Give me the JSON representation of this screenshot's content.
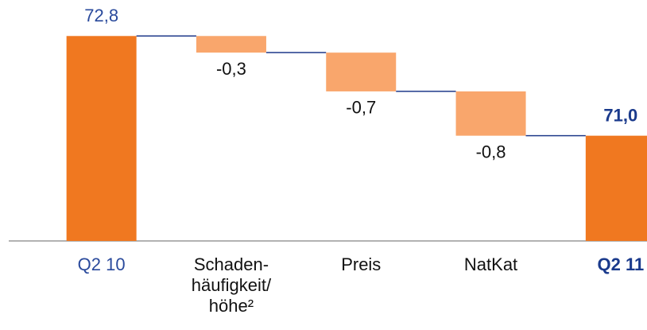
{
  "chart_data": {
    "type": "waterfall",
    "categories": [
      "Q2 10",
      "Schaden-\nhäufigkeit/\nhöhe²",
      "Preis",
      "NatKat",
      "Q2 11"
    ],
    "values": [
      72.8,
      -0.3,
      -0.7,
      -0.8,
      71.0
    ],
    "value_labels": [
      "72,8",
      "-0,3",
      "-0,7",
      "-0,8",
      "71,0"
    ],
    "colors": [
      "#f07820",
      "#f9a66c",
      "#f9a66c",
      "#f9a66c",
      "#f07820"
    ],
    "connector_color": "#1f3a8a",
    "ylim": [
      69.1,
      73.45
    ]
  }
}
